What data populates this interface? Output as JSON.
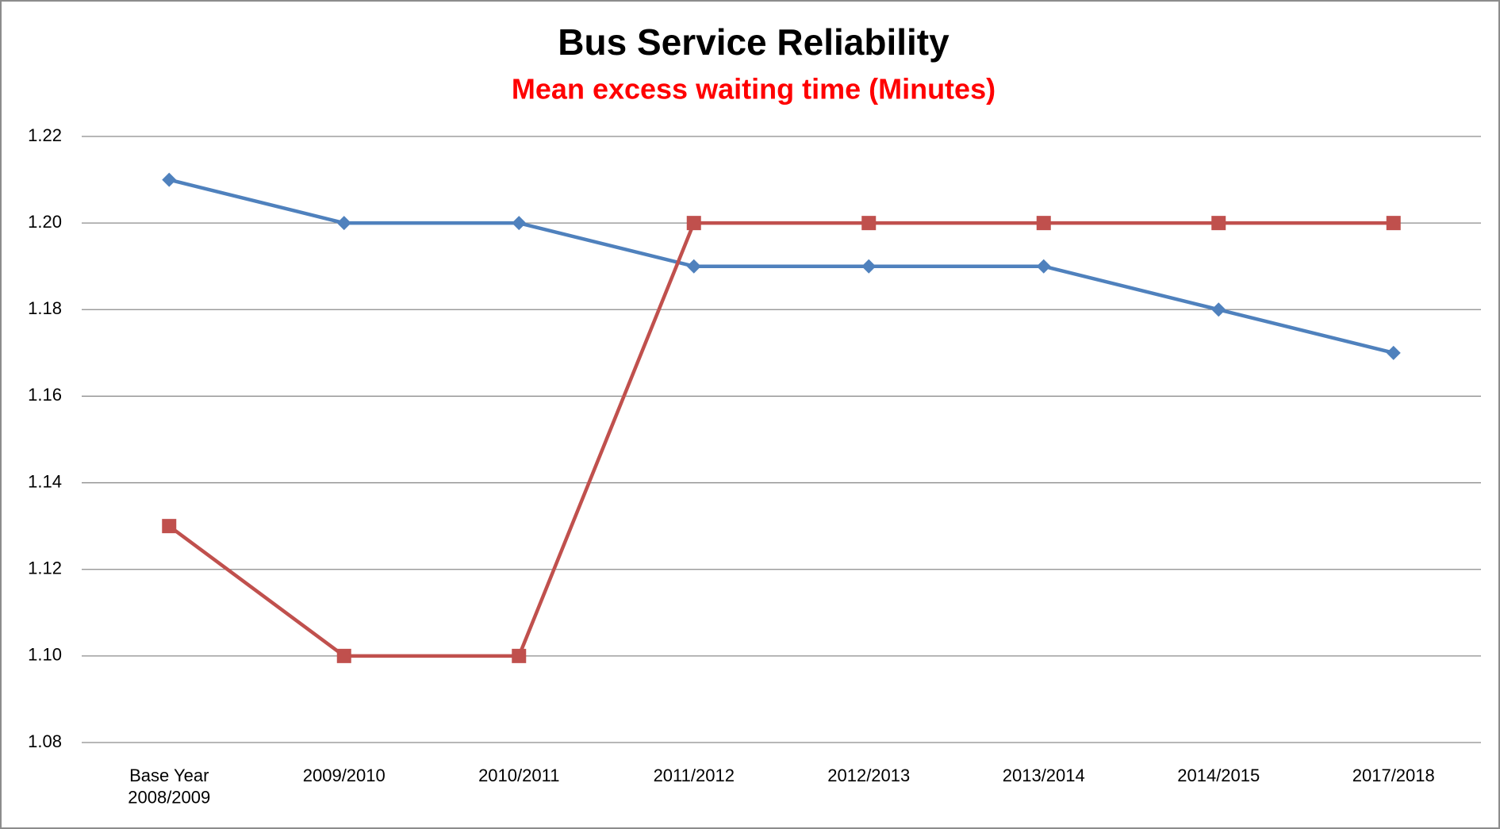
{
  "chart_data": {
    "type": "line",
    "title": "Bus Service Reliability",
    "subtitle": "Mean excess waiting time (Minutes)",
    "categories": [
      "Base Year\n2008/2009",
      "2009/2010",
      "2010/2011",
      "2011/2012",
      "2012/2013",
      "2013/2014",
      "2014/2015",
      "2017/2018"
    ],
    "series": [
      {
        "color": "#4f81bd",
        "marker": "diamond",
        "values": [
          1.21,
          1.2,
          1.2,
          1.19,
          1.19,
          1.19,
          1.18,
          1.17
        ]
      },
      {
        "color": "#c0504d",
        "marker": "square",
        "values": [
          1.13,
          1.1,
          1.1,
          1.2,
          1.2,
          1.2,
          1.2,
          1.2
        ]
      }
    ],
    "ylim": [
      1.08,
      1.22
    ],
    "yticks": [
      1.08,
      {
        "value": 1.1,
        "label": "1.10"
      },
      1.12,
      1.14,
      1.16,
      1.18,
      {
        "value": 1.2,
        "label": "1.20"
      },
      1.22
    ],
    "grid": true
  }
}
